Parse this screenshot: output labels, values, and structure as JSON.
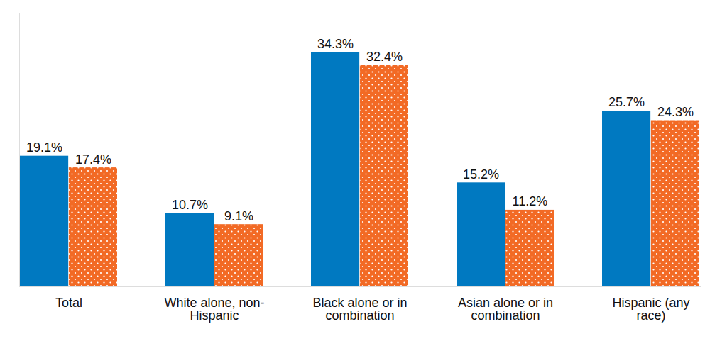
{
  "chart_data": {
    "type": "bar",
    "categories": [
      "Total",
      "White alone, non-Hispanic",
      "Black alone or in combination",
      "Asian alone or in combination",
      "Hispanic (any race)"
    ],
    "series": [
      {
        "color": "#0079c1",
        "values": [
          19.1,
          10.7,
          34.3,
          15.2,
          25.7
        ],
        "value_labels": [
          "19.1%",
          "10.7%",
          "34.3%",
          "15.2%",
          "25.7%"
        ]
      },
      {
        "color": "#f26a25",
        "values": [
          17.4,
          9.1,
          32.4,
          11.2,
          24.3
        ],
        "value_labels": [
          "17.4%",
          "9.1%",
          "32.4%",
          "11.2%",
          "24.3%"
        ]
      }
    ],
    "ylim": [
      0,
      40
    ],
    "yticks": [],
    "grid": false,
    "data_labels": true,
    "tick_labels": "x"
  }
}
